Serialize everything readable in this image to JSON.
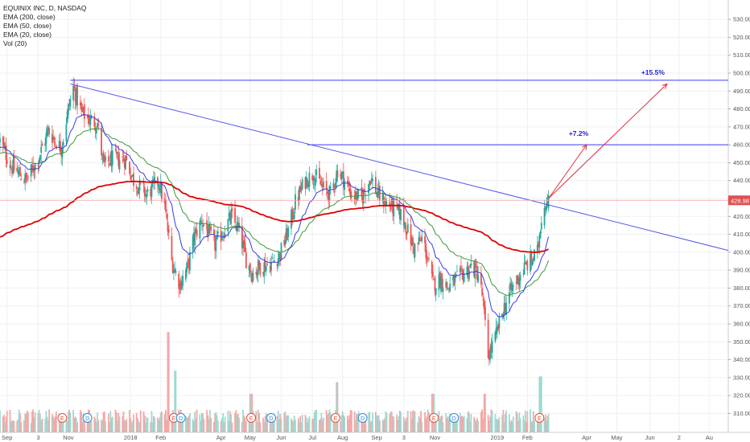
{
  "legend": {
    "symbol": "EQUINIX INC, D, NASDAQ",
    "ema200": "EMA (200, close)",
    "ema50": "EMA (50, close)",
    "ema20": "EMA (20, close)",
    "vol": "Vol (20)"
  },
  "chart_data": {
    "type": "candlestick",
    "ylim": [
      303,
      535
    ],
    "y_ticks": [
      310,
      320,
      330,
      340,
      350,
      360,
      370,
      380,
      390,
      400,
      410,
      420,
      430,
      440,
      450,
      460,
      470,
      480,
      490,
      500,
      510,
      520,
      530
    ],
    "x_ticks": [
      {
        "label": "Sep",
        "date": "2017-09-01"
      },
      {
        "label": "3",
        "date": "2017-10-02"
      },
      {
        "label": "Nov",
        "date": "2017-11-01"
      },
      {
        "label": "2018",
        "date": "2018-01-02"
      },
      {
        "label": "Feb",
        "date": "2018-02-01"
      },
      {
        "label": "Apr",
        "date": "2018-04-02"
      },
      {
        "label": "May",
        "date": "2018-05-01"
      },
      {
        "label": "Jun",
        "date": "2018-06-01"
      },
      {
        "label": "Jul",
        "date": "2018-07-02"
      },
      {
        "label": "Aug",
        "date": "2018-08-01"
      },
      {
        "label": "Sep",
        "date": "2018-09-04"
      },
      {
        "label": "3",
        "date": "2018-10-01"
      },
      {
        "label": "Nov",
        "date": "2018-11-01"
      },
      {
        "label": "2019",
        "date": "2019-01-02"
      },
      {
        "label": "Feb",
        "date": "2019-02-01"
      },
      {
        "label": "Apr",
        "date": "2019-04-01"
      },
      {
        "label": "May",
        "date": "2019-05-01"
      },
      {
        "label": "Jun",
        "date": "2019-06-03"
      },
      {
        "label": "2",
        "date": "2019-07-02"
      },
      {
        "label": "Au",
        "date": "2019-08-01"
      }
    ],
    "price_anchors": [
      [
        "2017-08-25",
        462
      ],
      [
        "2017-09-05",
        448
      ],
      [
        "2017-09-20",
        440
      ],
      [
        "2017-10-02",
        452
      ],
      [
        "2017-10-12",
        468
      ],
      [
        "2017-10-25",
        458
      ],
      [
        "2017-11-01",
        480
      ],
      [
        "2017-11-06",
        492
      ],
      [
        "2017-11-14",
        478
      ],
      [
        "2017-11-22",
        474
      ],
      [
        "2017-11-30",
        472
      ],
      [
        "2017-12-06",
        448
      ],
      [
        "2017-12-15",
        452
      ],
      [
        "2017-12-28",
        452
      ],
      [
        "2018-01-05",
        440
      ],
      [
        "2018-01-18",
        432
      ],
      [
        "2018-01-30",
        440
      ],
      [
        "2018-02-05",
        425
      ],
      [
        "2018-02-12",
        395
      ],
      [
        "2018-02-20",
        382
      ],
      [
        "2018-02-28",
        392
      ],
      [
        "2018-03-06",
        408
      ],
      [
        "2018-03-14",
        418
      ],
      [
        "2018-03-27",
        404
      ],
      [
        "2018-04-05",
        412
      ],
      [
        "2018-04-12",
        420
      ],
      [
        "2018-04-20",
        412
      ],
      [
        "2018-04-27",
        396
      ],
      [
        "2018-05-03",
        388
      ],
      [
        "2018-05-10",
        392
      ],
      [
        "2018-05-20",
        393
      ],
      [
        "2018-05-30",
        398
      ],
      [
        "2018-06-08",
        412
      ],
      [
        "2018-06-15",
        428
      ],
      [
        "2018-06-25",
        440
      ],
      [
        "2018-07-03",
        444
      ],
      [
        "2018-07-12",
        436
      ],
      [
        "2018-07-20",
        432
      ],
      [
        "2018-07-27",
        446
      ],
      [
        "2018-08-03",
        440
      ],
      [
        "2018-08-10",
        432
      ],
      [
        "2018-08-20",
        430
      ],
      [
        "2018-08-29",
        442
      ],
      [
        "2018-09-05",
        432
      ],
      [
        "2018-09-12",
        428
      ],
      [
        "2018-09-20",
        425
      ],
      [
        "2018-09-27",
        422
      ],
      [
        "2018-10-03",
        415
      ],
      [
        "2018-10-11",
        402
      ],
      [
        "2018-10-20",
        408
      ],
      [
        "2018-10-30",
        382
      ],
      [
        "2018-11-07",
        385
      ],
      [
        "2018-11-14",
        380
      ],
      [
        "2018-11-21",
        384
      ],
      [
        "2018-11-29",
        388
      ],
      [
        "2018-12-07",
        392
      ],
      [
        "2018-12-14",
        388
      ],
      [
        "2018-12-18",
        376
      ],
      [
        "2018-12-24",
        342
      ],
      [
        "2018-12-31",
        352
      ],
      [
        "2019-01-08",
        368
      ],
      [
        "2019-01-15",
        378
      ],
      [
        "2019-01-22",
        385
      ],
      [
        "2019-01-30",
        392
      ],
      [
        "2019-02-06",
        396
      ],
      [
        "2019-02-11",
        400
      ],
      [
        "2019-02-15",
        420
      ],
      [
        "2019-02-19",
        428
      ],
      [
        "2019-02-22",
        431
      ]
    ],
    "volume_spikes": [
      [
        "2018-02-09",
        2.6
      ],
      [
        "2018-02-16",
        1.6
      ],
      [
        "2018-05-02",
        1.0
      ],
      [
        "2018-07-27",
        1.3
      ],
      [
        "2018-10-30",
        1.0
      ],
      [
        "2018-12-21",
        1.0
      ],
      [
        "2019-02-14",
        1.45
      ]
    ],
    "earnings_markers": [
      {
        "date": "2017-10-26",
        "letter": "E"
      },
      {
        "date": "2017-11-20",
        "letter": "D"
      },
      {
        "date": "2018-02-14",
        "letter": "E"
      },
      {
        "date": "2018-02-21",
        "letter": "D"
      },
      {
        "date": "2018-05-02",
        "letter": "E"
      },
      {
        "date": "2018-05-22",
        "letter": "D"
      },
      {
        "date": "2018-07-25",
        "letter": "E"
      },
      {
        "date": "2018-08-21",
        "letter": "D"
      },
      {
        "date": "2018-10-31",
        "letter": "E"
      },
      {
        "date": "2018-11-20",
        "letter": "D"
      },
      {
        "date": "2019-02-13",
        "letter": "E"
      }
    ],
    "lines": [
      {
        "name": "resistance-top",
        "from": [
          "2017-11-03",
          496
        ],
        "to": [
          "2019-08-20",
          496
        ],
        "color": "#3a3aff"
      },
      {
        "name": "resistance-mid",
        "from": [
          "2018-06-27",
          460
        ],
        "to": [
          "2019-08-20",
          460
        ],
        "color": "#3a3aff"
      },
      {
        "name": "downtrend",
        "from": [
          "2017-11-03",
          494
        ],
        "to": [
          "2019-08-20",
          401
        ],
        "color": "#5555ee"
      },
      {
        "name": "target-1",
        "from": [
          "2019-02-22",
          430
        ],
        "to": [
          "2019-04-01",
          460
        ],
        "color": "#e0303a",
        "arrow": true
      },
      {
        "name": "target-2",
        "from": [
          "2019-02-22",
          430
        ],
        "to": [
          "2019-06-20",
          494
        ],
        "color": "#e0303a",
        "arrow": true
      }
    ],
    "annotations": [
      {
        "text": "+7.2%",
        "date": "2019-03-24",
        "y": 465,
        "color": "#2222cc"
      },
      {
        "text": "+15.5%",
        "date": "2019-06-06",
        "y": 499,
        "color": "#2222cc"
      }
    ],
    "last_price": {
      "value": "428.98",
      "y": 428.98,
      "color": "#e05050"
    },
    "colors": {
      "up": "#26a69a",
      "down": "#ef5350",
      "ema200": "#e00000",
      "ema50": "#3a9a3a",
      "ema20": "#3a3ae0"
    }
  }
}
